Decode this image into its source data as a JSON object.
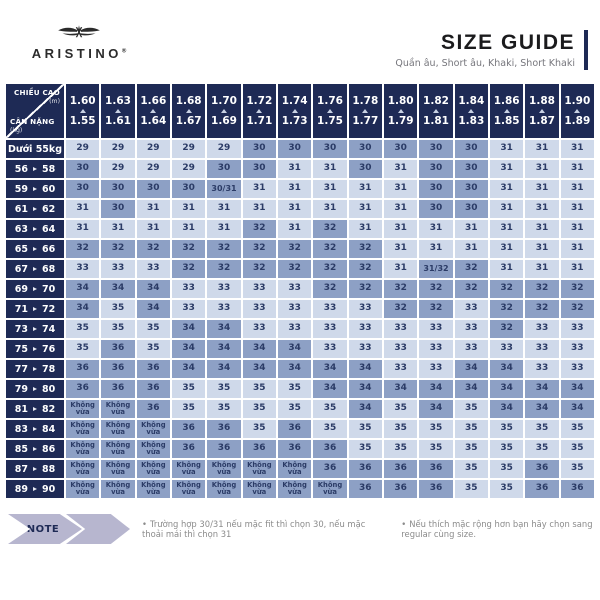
{
  "brand": {
    "name": "ARISTINO",
    "registered": "®"
  },
  "header": {
    "title": "SIZE GUIDE",
    "subtitle": "Quần âu, Short âu, Khaki, Short Khaki"
  },
  "colors": {
    "navy": "#1e2a55",
    "cell_light": "#cfd9ea",
    "cell_dark": "#8da0c5",
    "cell_text": "#2b3b66",
    "chevron": "#b7b6cf",
    "note_text": "#8b8b8b"
  },
  "table": {
    "corner": {
      "top": "CHIỀU CAO",
      "top_unit": "(m)",
      "bottom": "CÂN NẶNG",
      "bottom_unit": "(kg)"
    },
    "columns": [
      {
        "max": "1.60",
        "min": "1.55"
      },
      {
        "max": "1.63",
        "min": "1.61"
      },
      {
        "max": "1.66",
        "min": "1.64"
      },
      {
        "max": "1.68",
        "min": "1.67"
      },
      {
        "max": "1.70",
        "min": "1.69"
      },
      {
        "max": "1.72",
        "min": "1.71"
      },
      {
        "max": "1.74",
        "min": "1.73"
      },
      {
        "max": "1.76",
        "min": "1.75"
      },
      {
        "max": "1.78",
        "min": "1.77"
      },
      {
        "max": "1.80",
        "min": "1.79"
      },
      {
        "max": "1.82",
        "min": "1.81"
      },
      {
        "max": "1.84",
        "min": "1.83"
      },
      {
        "max": "1.86",
        "min": "1.85"
      },
      {
        "max": "1.88",
        "min": "1.87"
      },
      {
        "max": "1.90",
        "min": "1.89"
      }
    ],
    "rows": [
      {
        "text": "Dưới 55kg",
        "values": [
          "29",
          "29",
          "29",
          "29",
          "29",
          "30",
          "30",
          "30",
          "30",
          "30",
          "30",
          "30",
          "31",
          "31",
          "31"
        ],
        "dark": [
          0,
          0,
          0,
          0,
          0,
          1,
          1,
          1,
          1,
          1,
          1,
          1,
          0,
          0,
          0
        ]
      },
      {
        "from": "56",
        "to": "58",
        "values": [
          "30",
          "29",
          "29",
          "29",
          "30",
          "30",
          "31",
          "31",
          "30",
          "31",
          "30",
          "30",
          "31",
          "31",
          "31"
        ],
        "dark": [
          1,
          0,
          0,
          0,
          1,
          1,
          0,
          0,
          1,
          0,
          1,
          1,
          0,
          0,
          0
        ]
      },
      {
        "from": "59",
        "to": "60",
        "values": [
          "30",
          "30",
          "30",
          "30",
          "30/31",
          "31",
          "31",
          "31",
          "31",
          "31",
          "30",
          "30",
          "31",
          "31",
          "31"
        ],
        "dark": [
          1,
          1,
          1,
          1,
          1,
          0,
          0,
          0,
          0,
          0,
          1,
          1,
          0,
          0,
          0
        ]
      },
      {
        "from": "61",
        "to": "62",
        "values": [
          "31",
          "30",
          "31",
          "31",
          "31",
          "31",
          "31",
          "31",
          "31",
          "31",
          "30",
          "30",
          "31",
          "31",
          "31"
        ],
        "dark": [
          0,
          1,
          0,
          0,
          0,
          0,
          0,
          0,
          0,
          0,
          1,
          1,
          0,
          0,
          0
        ]
      },
      {
        "from": "63",
        "to": "64",
        "values": [
          "31",
          "31",
          "31",
          "31",
          "31",
          "32",
          "31",
          "32",
          "31",
          "31",
          "31",
          "31",
          "31",
          "31",
          "31"
        ],
        "dark": [
          0,
          0,
          0,
          0,
          0,
          1,
          0,
          1,
          0,
          0,
          0,
          0,
          0,
          0,
          0
        ]
      },
      {
        "from": "65",
        "to": "66",
        "values": [
          "32",
          "32",
          "32",
          "32",
          "32",
          "32",
          "32",
          "32",
          "32",
          "31",
          "31",
          "31",
          "31",
          "31",
          "31"
        ],
        "dark": [
          1,
          1,
          1,
          1,
          1,
          1,
          1,
          1,
          1,
          0,
          0,
          0,
          0,
          0,
          0
        ]
      },
      {
        "from": "67",
        "to": "68",
        "values": [
          "33",
          "33",
          "33",
          "32",
          "32",
          "32",
          "32",
          "32",
          "32",
          "31",
          "31/32",
          "32",
          "31",
          "31",
          "31"
        ],
        "dark": [
          0,
          0,
          0,
          1,
          1,
          1,
          1,
          1,
          1,
          0,
          1,
          1,
          0,
          0,
          0
        ]
      },
      {
        "from": "69",
        "to": "70",
        "values": [
          "34",
          "34",
          "34",
          "33",
          "33",
          "33",
          "33",
          "32",
          "32",
          "32",
          "32",
          "32",
          "32",
          "32",
          "32"
        ],
        "dark": [
          1,
          1,
          1,
          0,
          0,
          0,
          0,
          1,
          1,
          1,
          1,
          1,
          1,
          1,
          1
        ]
      },
      {
        "from": "71",
        "to": "72",
        "values": [
          "34",
          "35",
          "34",
          "33",
          "33",
          "33",
          "33",
          "33",
          "33",
          "32",
          "32",
          "33",
          "32",
          "32",
          "32"
        ],
        "dark": [
          1,
          0,
          1,
          0,
          0,
          0,
          0,
          0,
          0,
          1,
          1,
          0,
          1,
          1,
          1
        ]
      },
      {
        "from": "73",
        "to": "74",
        "values": [
          "35",
          "35",
          "35",
          "34",
          "34",
          "33",
          "33",
          "33",
          "33",
          "33",
          "33",
          "33",
          "32",
          "33",
          "33"
        ],
        "dark": [
          0,
          0,
          0,
          1,
          1,
          0,
          0,
          0,
          0,
          0,
          0,
          0,
          1,
          0,
          0
        ]
      },
      {
        "from": "75",
        "to": "76",
        "values": [
          "35",
          "36",
          "35",
          "34",
          "34",
          "34",
          "34",
          "33",
          "33",
          "33",
          "33",
          "33",
          "33",
          "33",
          "33"
        ],
        "dark": [
          0,
          1,
          0,
          1,
          1,
          1,
          1,
          0,
          0,
          0,
          0,
          0,
          0,
          0,
          0
        ]
      },
      {
        "from": "77",
        "to": "78",
        "values": [
          "36",
          "36",
          "36",
          "34",
          "34",
          "34",
          "34",
          "34",
          "34",
          "33",
          "33",
          "34",
          "34",
          "33",
          "33"
        ],
        "dark": [
          1,
          1,
          1,
          1,
          1,
          1,
          1,
          1,
          1,
          0,
          0,
          1,
          1,
          0,
          0
        ]
      },
      {
        "from": "79",
        "to": "80",
        "values": [
          "36",
          "36",
          "36",
          "35",
          "35",
          "35",
          "35",
          "34",
          "34",
          "34",
          "34",
          "34",
          "34",
          "34",
          "34"
        ],
        "dark": [
          1,
          1,
          1,
          0,
          0,
          0,
          0,
          1,
          1,
          1,
          1,
          1,
          1,
          1,
          1
        ]
      },
      {
        "from": "81",
        "to": "82",
        "values": [
          "Không vừa",
          "Không vừa",
          "36",
          "35",
          "35",
          "35",
          "35",
          "35",
          "34",
          "35",
          "34",
          "35",
          "34",
          "34",
          "34"
        ],
        "dark": [
          1,
          1,
          1,
          0,
          0,
          0,
          0,
          0,
          1,
          0,
          1,
          0,
          1,
          1,
          1
        ]
      },
      {
        "from": "83",
        "to": "84",
        "values": [
          "Không vừa",
          "Không vừa",
          "Không vừa",
          "36",
          "36",
          "35",
          "36",
          "35",
          "35",
          "35",
          "35",
          "35",
          "35",
          "35",
          "35"
        ],
        "dark": [
          1,
          1,
          1,
          1,
          1,
          0,
          1,
          0,
          0,
          0,
          0,
          0,
          0,
          0,
          0
        ]
      },
      {
        "from": "85",
        "to": "86",
        "values": [
          "Không vừa",
          "Không vừa",
          "Không vừa",
          "36",
          "36",
          "36",
          "36",
          "36",
          "35",
          "35",
          "35",
          "35",
          "35",
          "35",
          "35"
        ],
        "dark": [
          1,
          1,
          1,
          1,
          1,
          1,
          1,
          1,
          0,
          0,
          0,
          0,
          0,
          0,
          0
        ]
      },
      {
        "from": "87",
        "to": "88",
        "values": [
          "Không vừa",
          "Không vừa",
          "Không vừa",
          "Không vừa",
          "Không vừa",
          "Không vừa",
          "Không vừa",
          "36",
          "36",
          "36",
          "36",
          "35",
          "35",
          "36",
          "35"
        ],
        "dark": [
          1,
          1,
          1,
          1,
          1,
          1,
          1,
          1,
          1,
          1,
          1,
          0,
          0,
          1,
          0
        ]
      },
      {
        "from": "89",
        "to": "90",
        "values": [
          "Không vừa",
          "Không vừa",
          "Không vừa",
          "Không vừa",
          "Không vừa",
          "Không vừa",
          "Không vừa",
          "Không vừa",
          "36",
          "36",
          "36",
          "35",
          "35",
          "36",
          "36"
        ],
        "dark": [
          1,
          1,
          1,
          1,
          1,
          1,
          1,
          1,
          1,
          1,
          1,
          0,
          0,
          1,
          1
        ]
      }
    ]
  },
  "note": {
    "label": "NOTE",
    "items": [
      "Trường hợp 30/31 nếu mặc fit thì chọn 30, nếu mặc thoải mái thì chọn 31",
      "Nếu thích mặc rộng hơn bạn hãy chọn sang regular cùng size."
    ]
  }
}
